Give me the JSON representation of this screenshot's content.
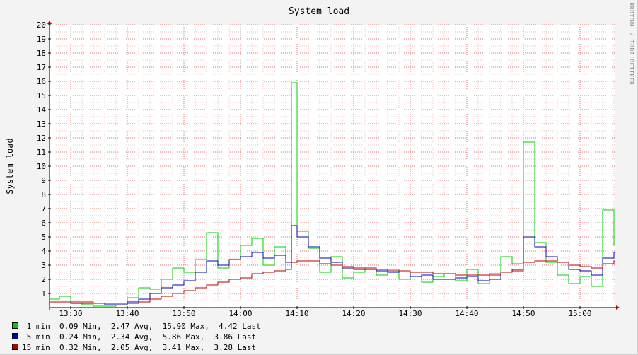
{
  "chart_data": {
    "type": "line",
    "title": "System load",
    "ylabel": "System load",
    "watermark": "RRDTOOL / TOBI OETIKER",
    "ylim": [
      0,
      20
    ],
    "yticks": [
      1,
      2,
      3,
      4,
      5,
      6,
      7,
      8,
      9,
      10,
      11,
      12,
      13,
      14,
      15,
      16,
      17,
      18,
      19,
      20
    ],
    "xticks": [
      "13:30",
      "13:40",
      "13:50",
      "14:00",
      "14:10",
      "14:20",
      "14:30",
      "14:40",
      "14:50",
      "15:00"
    ],
    "x": [
      "13:26",
      "13:28",
      "13:30",
      "13:32",
      "13:34",
      "13:36",
      "13:38",
      "13:40",
      "13:42",
      "13:44",
      "13:46",
      "13:48",
      "13:50",
      "13:52",
      "13:54",
      "13:56",
      "13:58",
      "14:00",
      "14:02",
      "14:04",
      "14:06",
      "14:08",
      "14:09",
      "14:10",
      "14:12",
      "14:14",
      "14:16",
      "14:18",
      "14:20",
      "14:22",
      "14:24",
      "14:26",
      "14:28",
      "14:30",
      "14:32",
      "14:34",
      "14:36",
      "14:38",
      "14:40",
      "14:42",
      "14:44",
      "14:46",
      "14:48",
      "14:50",
      "14:52",
      "14:54",
      "14:56",
      "14:58",
      "15:00",
      "15:02",
      "15:04",
      "15:06"
    ],
    "series": [
      {
        "name": "1 min",
        "color": "#00cc00",
        "values": [
          0.6,
          0.8,
          0.3,
          0.2,
          0.1,
          0.1,
          0.2,
          0.7,
          1.4,
          1.3,
          2.0,
          2.8,
          2.5,
          3.4,
          5.3,
          2.8,
          3.4,
          4.4,
          4.9,
          3.0,
          4.3,
          2.7,
          15.9,
          5.4,
          4.2,
          2.5,
          3.6,
          2.1,
          2.5,
          2.8,
          2.3,
          2.7,
          2.0,
          2.2,
          1.8,
          2.2,
          2.4,
          1.9,
          2.7,
          1.7,
          2.4,
          3.6,
          3.1,
          11.7,
          4.6,
          3.2,
          2.3,
          1.7,
          2.2,
          1.5,
          6.9,
          4.4
        ]
      },
      {
        "name": "5 min",
        "color": "#0000b4",
        "values": [
          0.4,
          0.4,
          0.3,
          0.3,
          0.3,
          0.2,
          0.2,
          0.4,
          0.6,
          1.0,
          1.4,
          1.6,
          1.9,
          2.5,
          3.3,
          3.0,
          3.4,
          3.6,
          3.9,
          3.5,
          3.7,
          3.2,
          5.8,
          5.0,
          4.3,
          3.5,
          3.2,
          2.8,
          2.7,
          2.7,
          2.6,
          2.5,
          2.6,
          2.2,
          2.3,
          2.0,
          2.0,
          2.1,
          2.2,
          1.9,
          2.0,
          2.5,
          2.7,
          5.0,
          4.3,
          3.6,
          3.2,
          2.7,
          2.6,
          2.3,
          3.5,
          3.9
        ]
      },
      {
        "name": "15 min",
        "color": "#b40000",
        "values": [
          0.4,
          0.4,
          0.4,
          0.4,
          0.3,
          0.3,
          0.3,
          0.3,
          0.4,
          0.6,
          0.8,
          1.0,
          1.2,
          1.4,
          1.6,
          1.8,
          2.0,
          2.1,
          2.4,
          2.5,
          2.6,
          2.7,
          3.2,
          3.3,
          3.3,
          3.1,
          3.0,
          2.9,
          2.8,
          2.8,
          2.7,
          2.6,
          2.6,
          2.5,
          2.5,
          2.4,
          2.4,
          2.3,
          2.3,
          2.3,
          2.3,
          2.5,
          2.6,
          3.2,
          3.3,
          3.3,
          3.2,
          3.0,
          2.9,
          2.8,
          3.1,
          3.3
        ]
      }
    ],
    "legend": [
      {
        "name": "1 min",
        "color": "#00cc00",
        "text": " 1 min  0.09 Min,  2.47 Avg,  15.90 Max,  4.42 Last"
      },
      {
        "name": "5 min",
        "color": "#0000b4",
        "text": " 5 min  0.24 Min,  2.34 Avg,  5.86 Max,  3.86 Last"
      },
      {
        "name": "15 min",
        "color": "#b40000",
        "text": "15 min  0.32 Min,  2.05 Avg,  3.41 Max,  3.28 Last"
      }
    ],
    "grid": true,
    "legend_position": "bottom-left"
  }
}
